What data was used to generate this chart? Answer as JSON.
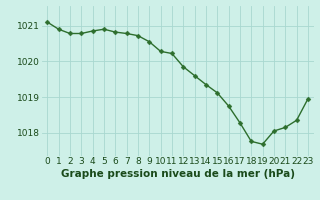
{
  "x": [
    0,
    1,
    2,
    3,
    4,
    5,
    6,
    7,
    8,
    9,
    10,
    11,
    12,
    13,
    14,
    15,
    16,
    17,
    18,
    19,
    20,
    21,
    22,
    23
  ],
  "y": [
    1021.1,
    1020.9,
    1020.78,
    1020.78,
    1020.85,
    1020.9,
    1020.82,
    1020.78,
    1020.72,
    1020.55,
    1020.28,
    1020.22,
    1019.85,
    1019.6,
    1019.35,
    1019.12,
    1018.75,
    1018.28,
    1017.76,
    1017.68,
    1018.05,
    1018.15,
    1018.35,
    1018.95
  ],
  "line_color": "#2d6e2d",
  "marker_color": "#2d6e2d",
  "bg_color": "#cef0e8",
  "grid_color": "#a8d8d0",
  "xlabel": "Graphe pression niveau de la mer (hPa)",
  "xlabel_color": "#1a4a1a",
  "tick_color": "#1a4a1a",
  "ylim_min": 1017.35,
  "ylim_max": 1021.55,
  "yticks": [
    1018,
    1019,
    1020,
    1021
  ],
  "xticks": [
    0,
    1,
    2,
    3,
    4,
    5,
    6,
    7,
    8,
    9,
    10,
    11,
    12,
    13,
    14,
    15,
    16,
    17,
    18,
    19,
    20,
    21,
    22,
    23
  ],
  "font_size_xlabel": 7.5,
  "font_size_ticks": 6.5,
  "line_width": 1.0,
  "marker_size": 2.5
}
